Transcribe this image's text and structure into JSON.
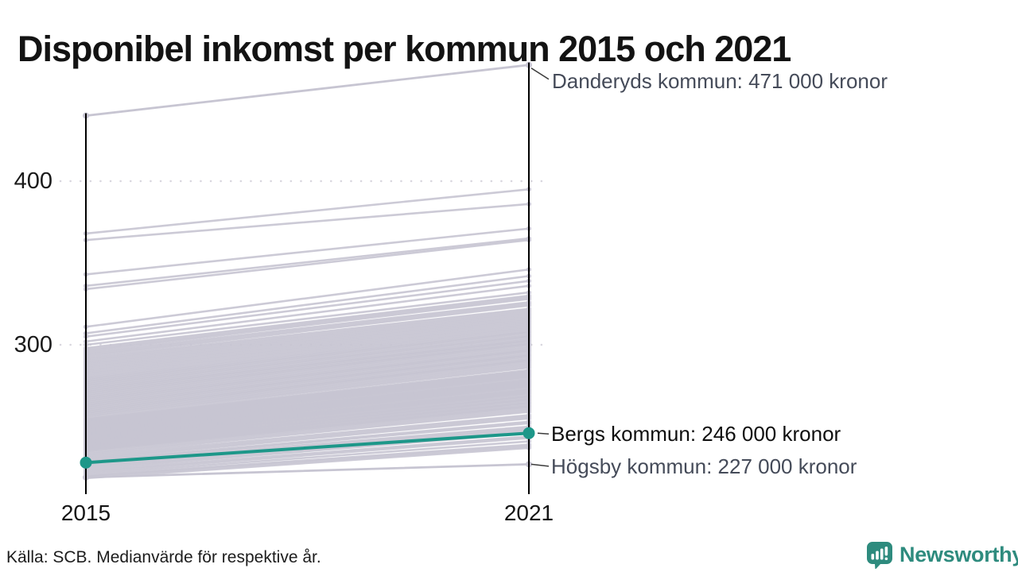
{
  "title": "Disponibel inkomst per kommun 2015 och 2021",
  "source_note": "Källa: SCB. Medianvärde för respektive år.",
  "brand": {
    "name": "Newsworthy",
    "logo_icon": "speech-bubble-bar-chart-icon",
    "color": "#2e8b7e"
  },
  "colors": {
    "highlight": "#1d9789",
    "background_line": "#c7c5d2",
    "gridline": "#d8d6de",
    "axis": "#000000",
    "annotation_gray": "#454b59",
    "annotation_black": "#0f0f0f",
    "connector": "#3b3b3b"
  },
  "chart_data": {
    "type": "slope",
    "title": "Disponibel inkomst per kommun 2015 och 2021",
    "x_labels": [
      "2015",
      "2021"
    ],
    "y_ticks": [
      400,
      300
    ],
    "y_tick_labels": [
      "400",
      "300"
    ],
    "y_unit": "000 kronor",
    "y_range_approx": [
      215,
      475
    ],
    "grid": "dotted horizontal at ticks",
    "highlight": {
      "name": "Bergs kommun",
      "label": "Bergs kommun: 246 000 kronor",
      "values": [
        228,
        246
      ]
    },
    "annotated": [
      {
        "name": "Danderyds kommun",
        "label": "Danderyds kommun: 471 000 kronor",
        "values": [
          440,
          471
        ]
      },
      {
        "name": "Högsby kommun",
        "label": "Högsby kommun: 227 000 kronor",
        "values": [
          219,
          227
        ]
      }
    ],
    "background_series": [
      [
        368,
        395
      ],
      [
        364,
        386
      ],
      [
        343,
        371
      ],
      [
        336,
        365
      ],
      [
        334,
        364
      ],
      [
        311,
        346
      ],
      [
        307,
        342
      ],
      [
        305,
        339
      ],
      [
        302,
        336
      ],
      [
        300,
        332
      ],
      [
        298,
        330
      ],
      [
        297,
        329
      ],
      [
        296,
        328
      ],
      [
        295,
        326
      ],
      [
        294,
        325
      ],
      [
        293,
        324
      ],
      [
        292,
        322
      ],
      [
        291,
        321
      ],
      [
        290,
        320
      ],
      [
        289,
        319
      ],
      [
        288,
        318
      ],
      [
        287,
        317
      ],
      [
        286,
        316
      ],
      [
        285,
        315
      ],
      [
        284,
        314
      ],
      [
        283,
        313
      ],
      [
        282,
        312
      ],
      [
        281,
        311
      ],
      [
        280,
        310
      ],
      [
        279.2,
        309
      ],
      [
        278.4,
        308
      ],
      [
        277.6,
        307.5
      ],
      [
        276.8,
        306.5
      ],
      [
        276,
        305.5
      ],
      [
        275.2,
        305
      ],
      [
        274.4,
        304
      ],
      [
        273.6,
        303
      ],
      [
        272.8,
        302.5
      ],
      [
        272,
        302
      ],
      [
        271.2,
        301
      ],
      [
        270.4,
        300.5
      ],
      [
        269.6,
        300
      ],
      [
        268.8,
        299
      ],
      [
        268,
        298
      ],
      [
        267.2,
        297
      ],
      [
        266.4,
        296.5
      ],
      [
        265.6,
        296
      ],
      [
        264.8,
        295
      ],
      [
        264,
        294
      ],
      [
        263.2,
        293.5
      ],
      [
        262.4,
        293
      ],
      [
        261.6,
        292
      ],
      [
        260.8,
        291
      ],
      [
        260,
        290.5
      ],
      [
        259.2,
        290
      ],
      [
        258.4,
        289
      ],
      [
        257.6,
        288
      ],
      [
        256.8,
        287
      ],
      [
        256,
        286
      ],
      [
        255,
        284.5
      ],
      [
        254.5,
        284
      ],
      [
        254,
        283.5
      ],
      [
        253.5,
        283
      ],
      [
        253,
        282.5
      ],
      [
        252.5,
        282
      ],
      [
        252,
        281.5
      ],
      [
        251.5,
        281
      ],
      [
        251,
        280.5
      ],
      [
        250.5,
        280
      ],
      [
        250,
        279
      ],
      [
        249.5,
        278.5
      ],
      [
        249,
        278
      ],
      [
        248.5,
        277.5
      ],
      [
        248,
        277
      ],
      [
        247.5,
        276.5
      ],
      [
        247,
        276
      ],
      [
        246.5,
        275.5
      ],
      [
        246,
        275
      ],
      [
        245.5,
        274.5
      ],
      [
        245,
        274
      ],
      [
        244.5,
        273
      ],
      [
        244,
        272.5
      ],
      [
        243.5,
        272
      ],
      [
        243,
        271.5
      ],
      [
        242.5,
        271
      ],
      [
        242,
        270.5
      ],
      [
        241.5,
        270
      ],
      [
        241,
        269
      ],
      [
        240.5,
        268.5
      ],
      [
        240,
        268
      ],
      [
        239.5,
        267
      ],
      [
        239,
        266.5
      ],
      [
        238.5,
        266
      ],
      [
        238,
        265
      ],
      [
        237.5,
        264.5
      ],
      [
        237,
        264
      ],
      [
        236.5,
        263
      ],
      [
        236,
        262.5
      ],
      [
        235.5,
        262
      ],
      [
        235,
        261
      ],
      [
        234,
        260
      ],
      [
        233,
        259
      ],
      [
        232,
        257
      ],
      [
        231,
        256
      ],
      [
        230,
        255
      ],
      [
        229,
        253
      ],
      [
        228.5,
        252
      ],
      [
        227.8,
        250
      ],
      [
        227,
        249
      ],
      [
        226,
        248
      ],
      [
        225,
        247
      ],
      [
        224,
        246
      ],
      [
        223,
        244
      ],
      [
        222,
        243
      ],
      [
        221,
        241
      ],
      [
        220,
        239
      ],
      [
        219.5,
        238
      ],
      [
        218.5,
        237
      ]
    ]
  }
}
